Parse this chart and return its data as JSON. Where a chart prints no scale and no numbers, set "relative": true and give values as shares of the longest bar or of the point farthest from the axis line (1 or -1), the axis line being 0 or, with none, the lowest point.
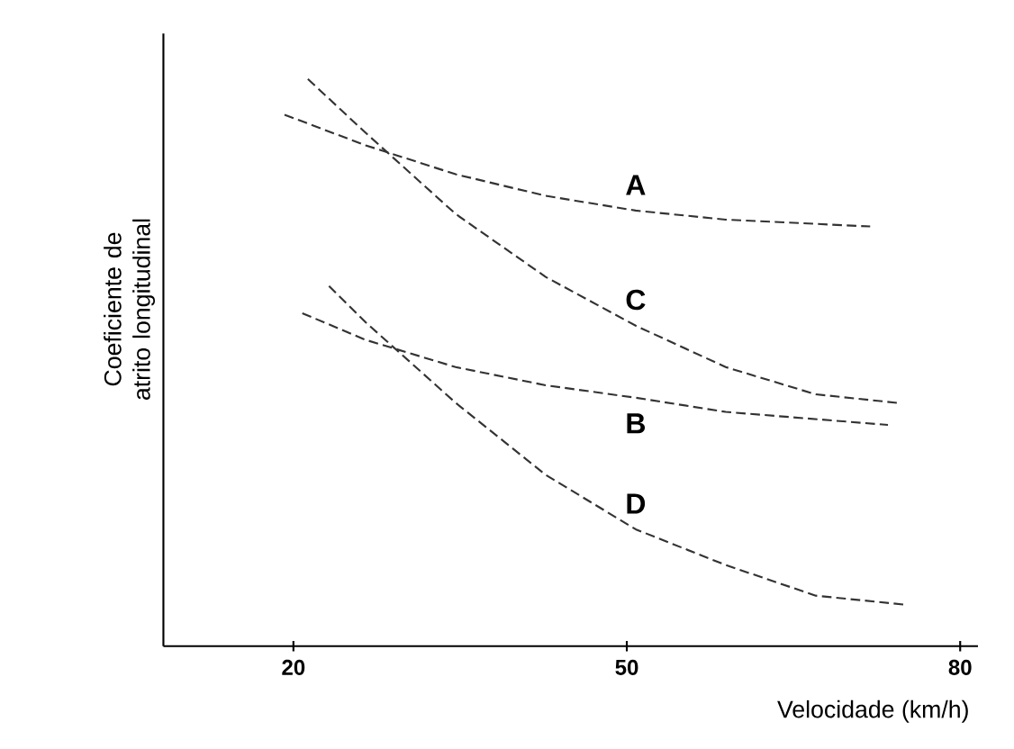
{
  "chart_data": {
    "type": "line",
    "relative": true,
    "xlabel": "Velocidade (km/h)",
    "ylabel": "Coeficiente de atrito longitudinal",
    "xlim": [
      8.3,
      81.6
    ],
    "xticks": [
      20,
      50,
      80
    ],
    "grid": false,
    "marker": "none",
    "line_style": "dashed",
    "series": [
      {
        "name": "A",
        "color": "#333333",
        "x": [
          19.2,
          26.5,
          34.6,
          42.7,
          50.8,
          58.9,
          71.9
        ],
        "values": [
          0.937,
          0.883,
          0.832,
          0.794,
          0.768,
          0.752,
          0.74
        ]
      },
      {
        "name": "C",
        "color": "#333333",
        "x": [
          21.3,
          26.5,
          34.6,
          42.7,
          50.8,
          58.9,
          67.0,
          74.3
        ],
        "values": [
          1.0,
          0.905,
          0.762,
          0.651,
          0.565,
          0.492,
          0.444,
          0.429
        ]
      },
      {
        "name": "B",
        "color": "#333333",
        "x": [
          20.8,
          26.5,
          34.6,
          42.7,
          50.8,
          58.9,
          73.5
        ],
        "values": [
          0.587,
          0.54,
          0.492,
          0.46,
          0.438,
          0.413,
          0.39
        ]
      },
      {
        "name": "D",
        "color": "#333333",
        "x": [
          23.2,
          26.5,
          34.6,
          42.7,
          50.8,
          58.9,
          67.0,
          75.1
        ],
        "values": [
          0.635,
          0.571,
          0.429,
          0.302,
          0.206,
          0.143,
          0.089,
          0.073
        ]
      }
    ]
  }
}
